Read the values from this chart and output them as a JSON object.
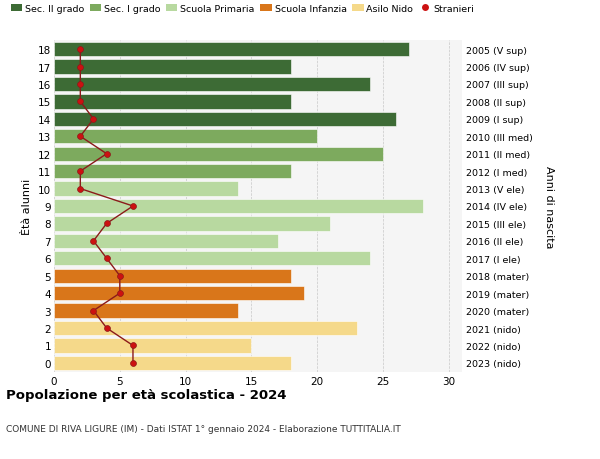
{
  "ages": [
    18,
    17,
    16,
    15,
    14,
    13,
    12,
    11,
    10,
    9,
    8,
    7,
    6,
    5,
    4,
    3,
    2,
    1,
    0
  ],
  "right_labels": [
    "2005 (V sup)",
    "2006 (IV sup)",
    "2007 (III sup)",
    "2008 (II sup)",
    "2009 (I sup)",
    "2010 (III med)",
    "2011 (II med)",
    "2012 (I med)",
    "2013 (V ele)",
    "2014 (IV ele)",
    "2015 (III ele)",
    "2016 (II ele)",
    "2017 (I ele)",
    "2018 (mater)",
    "2019 (mater)",
    "2020 (mater)",
    "2021 (nido)",
    "2022 (nido)",
    "2023 (nido)"
  ],
  "bar_values": [
    27,
    18,
    24,
    18,
    26,
    20,
    25,
    18,
    14,
    28,
    21,
    17,
    24,
    18,
    19,
    14,
    23,
    15,
    18
  ],
  "bar_colors": [
    "#3d6b35",
    "#3d6b35",
    "#3d6b35",
    "#3d6b35",
    "#3d6b35",
    "#7daa5e",
    "#7daa5e",
    "#7daa5e",
    "#b8d9a0",
    "#b8d9a0",
    "#b8d9a0",
    "#b8d9a0",
    "#b8d9a0",
    "#d9761a",
    "#d9761a",
    "#d9761a",
    "#f5d98a",
    "#f5d98a",
    "#f5d98a"
  ],
  "stranieri_values": [
    2,
    2,
    2,
    2,
    3,
    2,
    4,
    2,
    2,
    6,
    4,
    3,
    4,
    5,
    5,
    3,
    4,
    6,
    6
  ],
  "legend_labels": [
    "Sec. II grado",
    "Sec. I grado",
    "Scuola Primaria",
    "Scuola Infanzia",
    "Asilo Nido",
    "Stranieri"
  ],
  "legend_colors": [
    "#3d6b35",
    "#7daa5e",
    "#b8d9a0",
    "#d9761a",
    "#f5d98a",
    "#cc0000"
  ],
  "title": "Popolazione per età scolastica - 2024",
  "subtitle": "COMUNE DI RIVA LIGURE (IM) - Dati ISTAT 1° gennaio 2024 - Elaborazione TUTTITALIA.IT",
  "xlabel_right": "Anni di nascita",
  "ylabel": "Ètà alunni",
  "background_color": "#ffffff"
}
